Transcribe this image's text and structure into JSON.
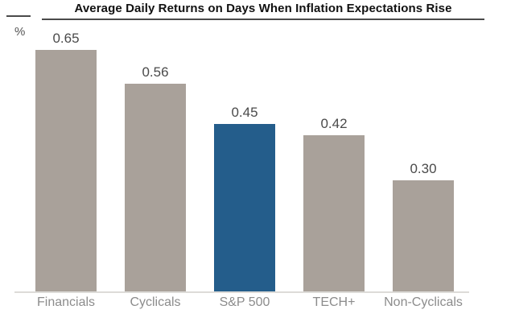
{
  "header": {
    "title": "Average Daily Returns on Days When Inflation Expectations Rise",
    "unit_label": "%"
  },
  "chart_data": {
    "type": "bar",
    "title": "Average Daily Returns on Days When Inflation Expectations Rise",
    "xlabel": "",
    "ylabel": "%",
    "ylim": [
      0,
      0.7
    ],
    "grid": false,
    "legend": "none",
    "categories": [
      "Financials",
      "Cyclicals",
      "S&P 500",
      "TECH+",
      "Non-Cyclicals"
    ],
    "values": [
      0.65,
      0.56,
      0.45,
      0.42,
      0.3
    ],
    "value_labels": [
      "0.65",
      "0.56",
      "0.45",
      "0.42",
      "0.30"
    ],
    "bar_colors": [
      "#a9a19a",
      "#a9a19a",
      "#245d8b",
      "#a9a19a",
      "#a9a19a"
    ],
    "default_bar_color": "#a9a19a",
    "highlight_category": "S&P 500",
    "highlight_color": "#245d8b",
    "baseline_color": "#dddbd8"
  }
}
